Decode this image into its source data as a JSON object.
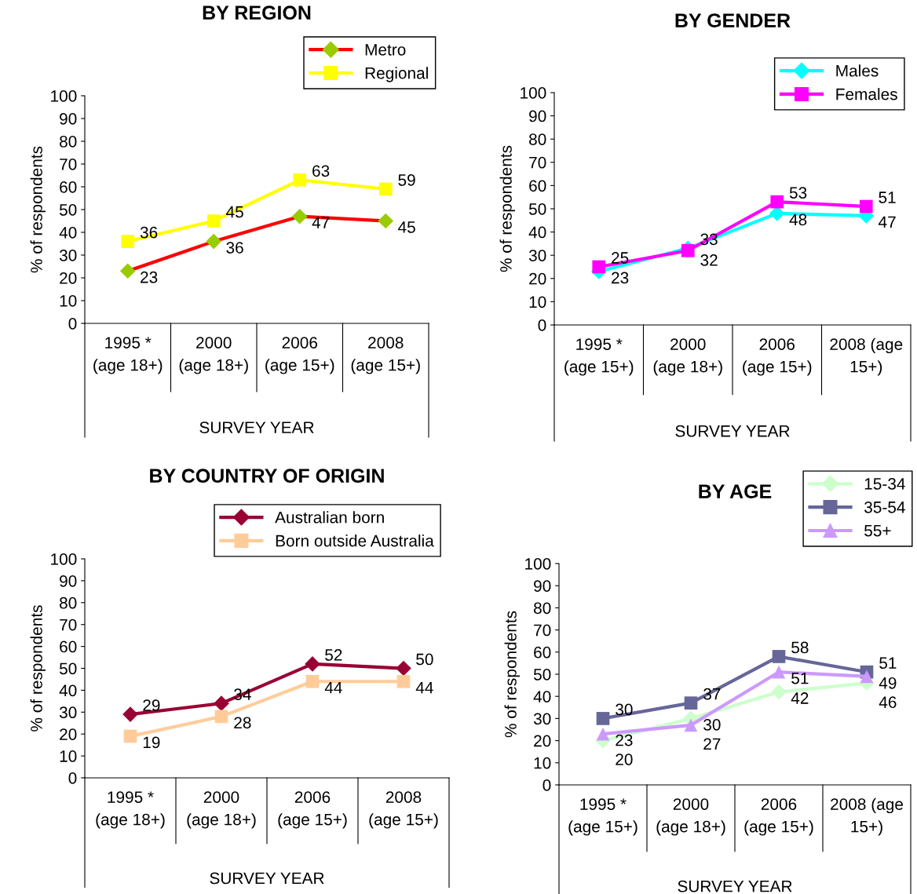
{
  "chart_data": [
    {
      "type": "line",
      "title": "BY REGION",
      "xlabel": "SURVEY YEAR",
      "ylabel": "% of respondents",
      "categories": [
        "1995 *\n(age 18+)",
        "2000\n(age 18+)",
        "2006\n(age 15+)",
        "2008\n(age 15+)"
      ],
      "ylim": [
        0,
        100
      ],
      "yticks": [
        0,
        10,
        20,
        30,
        40,
        50,
        60,
        70,
        80,
        90,
        100
      ],
      "grid": false,
      "legend": "top right",
      "data_labels": true,
      "series": [
        {
          "name": "Metro",
          "color": "#ff0000",
          "colors": [
            "#99cc00",
            "#99cc00",
            "#99cc00",
            "#99cc00"
          ],
          "marker": "diamond",
          "values": [
            23,
            36,
            47,
            45
          ]
        },
        {
          "name": "Regional",
          "color": "#ffff00",
          "marker": "square",
          "values": [
            36,
            45,
            63,
            59
          ]
        }
      ]
    },
    {
      "type": "line",
      "title": "BY GENDER",
      "xlabel": "SURVEY YEAR",
      "ylabel": "% of respondents",
      "categories": [
        "1995 *\n(age 15+)",
        "2000\n(age 18+)",
        "2006\n(age 15+)",
        "2008 (age\n15+)"
      ],
      "ylim": [
        0,
        100
      ],
      "yticks": [
        0,
        10,
        20,
        30,
        40,
        50,
        60,
        70,
        80,
        90,
        100
      ],
      "grid": false,
      "legend": "top right",
      "data_labels": true,
      "series": [
        {
          "name": "Males",
          "color": "#00ffff",
          "marker": "diamond",
          "values": [
            23,
            33,
            48,
            47
          ]
        },
        {
          "name": "Females",
          "color": "#ff00ff",
          "marker": "square",
          "values": [
            25,
            32,
            53,
            51
          ]
        }
      ]
    },
    {
      "type": "line",
      "title": "BY COUNTRY OF ORIGIN",
      "xlabel": "SURVEY YEAR",
      "ylabel": "% of respondents",
      "categories": [
        "1995 *\n(age 18+)",
        "2000\n(age 18+)",
        "2006\n(age 15+)",
        "2008\n(age 15+)"
      ],
      "ylim": [
        0,
        100
      ],
      "yticks": [
        0,
        10,
        20,
        30,
        40,
        50,
        60,
        70,
        80,
        90,
        100
      ],
      "grid": false,
      "legend": "top right",
      "data_labels": true,
      "series": [
        {
          "name": "Australian born",
          "color": "#990033",
          "marker": "diamond",
          "values": [
            29,
            34,
            52,
            50
          ]
        },
        {
          "name": "Born outside Australia",
          "color": "#ffcc99",
          "marker": "square",
          "values": [
            19,
            28,
            44,
            44
          ]
        }
      ]
    },
    {
      "type": "line",
      "title": "BY AGE",
      "xlabel": "SURVEY YEAR",
      "ylabel": "% of respondents",
      "categories": [
        "1995 *\n(age 15+)",
        "2000\n(age 18+)",
        "2006\n(age 15+)",
        "2008 (age\n15+)"
      ],
      "ylim": [
        0,
        100
      ],
      "yticks": [
        0,
        10,
        20,
        30,
        40,
        50,
        60,
        70,
        80,
        90,
        100
      ],
      "grid": false,
      "legend": "top right",
      "data_labels": true,
      "series": [
        {
          "name": "15-34",
          "color": "#ccffcc",
          "marker": "diamond",
          "values": [
            20,
            30,
            42,
            46
          ]
        },
        {
          "name": "35-54",
          "color": "#666699",
          "marker": "square",
          "values": [
            30,
            37,
            58,
            51
          ]
        },
        {
          "name": "55+",
          "color": "#cc99ff",
          "marker": "triangle",
          "values": [
            23,
            27,
            51,
            49
          ]
        }
      ]
    }
  ]
}
